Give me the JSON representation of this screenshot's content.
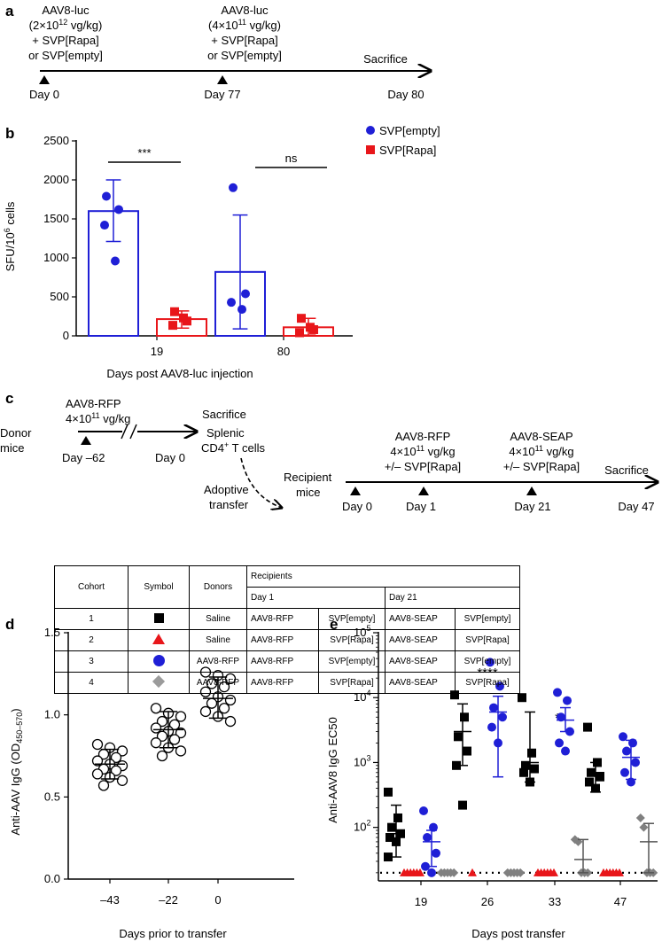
{
  "panel_a": {
    "label": "a",
    "events": [
      {
        "lines": [
          "AAV8-luc",
          "(2×10^12 vg/kg)",
          "+ SVP[Rapa]",
          "or SVP[empty]"
        ],
        "day": "Day 0"
      },
      {
        "lines": [
          "AAV8-luc",
          "(4×10^11 vg/kg)",
          "+ SVP[Rapa]",
          "or SVP[empty]"
        ],
        "day": "Day 77"
      }
    ],
    "end_label": "Sacrifice",
    "end_day": "Day 80"
  },
  "panel_b": {
    "label": "b",
    "chart_data": {
      "type": "bar",
      "categories": [
        "19",
        "80"
      ],
      "xlabel": "Days post AAV8-luc injection",
      "ylabel": "SFU/10^6 cells",
      "ylim": [
        0,
        2500
      ],
      "yticks": [
        0,
        500,
        1000,
        1500,
        2000,
        2500
      ],
      "legend": [
        "SVP[empty]",
        "SVP[Rapa]"
      ],
      "series": [
        {
          "name": "SVP[empty]",
          "color": "#1f1fd6",
          "marker": "circle",
          "means": [
            1600,
            820
          ],
          "sd_low": [
            1210,
            90
          ],
          "sd_high": [
            2000,
            1550
          ],
          "points": [
            [
              1790,
              1620,
              1420,
              960
            ],
            [
              1900,
              540,
              430,
              340
            ]
          ]
        },
        {
          "name": "SVP[Rapa]",
          "color": "#e8161a",
          "marker": "square",
          "means": [
            215,
            110
          ],
          "sd_low": [
            100,
            10
          ],
          "sd_high": [
            320,
            225
          ],
          "points": [
            [
              310,
              190,
              135,
              230
            ],
            [
              225,
              80,
              40,
              110
            ]
          ]
        }
      ],
      "significance": [
        "***",
        "ns"
      ]
    }
  },
  "panel_c": {
    "label": "c",
    "donor_label": [
      "Donor",
      "mice"
    ],
    "donor_inject": [
      "AAV8-RFP",
      "4×10^11 vg/kg"
    ],
    "donor_days": [
      "Day –62",
      "Day 0"
    ],
    "donor_end": "Sacrifice",
    "donor_cells": [
      "Splenic",
      "CD4+ T cells"
    ],
    "adoptive": [
      "Adoptive",
      "transfer"
    ],
    "recipient_label": [
      "Recipient",
      "mice"
    ],
    "recipient_events": [
      {
        "lines": [
          "AAV8-RFP",
          "4×10^11 vg/kg",
          "+/– SVP[Rapa]"
        ],
        "day": "Day 1"
      },
      {
        "lines": [
          "AAV8-SEAP",
          "4×10^11 vg/kg",
          "+/– SVP[Rapa]"
        ],
        "day": "Day 21"
      }
    ],
    "recipient_start": "Day 0",
    "recipient_end": "Sacrifice",
    "recipient_end_day": "Day 47",
    "table": {
      "headers": [
        "Cohort",
        "Symbol",
        "Donors",
        "Recipients",
        "Day 1",
        "Day 21"
      ],
      "rows": [
        {
          "cohort": "1",
          "symbol": "square",
          "donors": "Saline",
          "d1a": "AAV8-RFP",
          "d1b": "SVP[empty]",
          "d21a": "AAV8-SEAP",
          "d21b": "SVP[empty]"
        },
        {
          "cohort": "2",
          "symbol": "triangle",
          "donors": "Saline",
          "d1a": "AAV8-RFP",
          "d1b": "SVP[Rapa]",
          "d21a": "AAV8-SEAP",
          "d21b": "SVP[Rapa]"
        },
        {
          "cohort": "3",
          "symbol": "circle",
          "donors": "AAV8-RFP",
          "d1a": "AAV8-RFP",
          "d1b": "SVP[empty]",
          "d21a": "AAV8-SEAP",
          "d21b": "SVP[empty]"
        },
        {
          "cohort": "4",
          "symbol": "diamond",
          "donors": "AAV8-RFP",
          "d1a": "AAV8-RFP",
          "d1b": "SVP[Rapa]",
          "d21a": "AAV8-SEAP",
          "d21b": "SVP[Rapa]"
        }
      ]
    }
  },
  "panel_d": {
    "label": "d",
    "chart_data": {
      "type": "scatter",
      "categories": [
        "–43",
        "–22",
        "0"
      ],
      "xlabel": "Days prior to transfer",
      "ylabel": "Anti-AAV IgG (OD450–570)",
      "ylim": [
        0,
        1.5
      ],
      "yticks": [
        0.0,
        0.5,
        1.0,
        1.5
      ],
      "means": [
        0.7,
        0.91,
        1.1
      ],
      "sd_low": [
        0.61,
        0.8,
        0.98
      ],
      "sd_high": [
        0.79,
        1.02,
        1.23
      ],
      "points": [
        [
          0.82,
          0.8,
          0.78,
          0.76,
          0.74,
          0.72,
          0.7,
          0.69,
          0.67,
          0.66,
          0.64,
          0.62,
          0.6,
          0.57
        ],
        [
          1.04,
          1.01,
          0.99,
          0.96,
          0.94,
          0.92,
          0.9,
          0.89,
          0.87,
          0.85,
          0.83,
          0.8,
          0.78,
          0.75
        ],
        [
          1.26,
          1.24,
          1.22,
          1.19,
          1.17,
          1.14,
          1.11,
          1.09,
          1.07,
          1.04,
          1.02,
          0.99,
          0.96
        ]
      ]
    }
  },
  "panel_e": {
    "label": "e",
    "chart_data": {
      "type": "scatter",
      "yscale": "log",
      "categories": [
        "19",
        "26",
        "33",
        "47"
      ],
      "xlabel": "Days post transfer",
      "ylabel": "Anti-AAV8 IgG EC50",
      "ylim": [
        20,
        100000
      ],
      "yticks": [
        "10^2",
        "10^3",
        "10^4",
        "10^5"
      ],
      "detection_limit": 20,
      "significance": [
        "",
        "****",
        "*",
        ""
      ],
      "series": [
        {
          "name": "Cohort 1",
          "marker": "square",
          "color": "#000000",
          "values": [
            [
              350,
              140,
              100,
              80,
              70,
              60,
              35
            ],
            [
              11000,
              5000,
              2500,
              1500,
              900,
              220
            ],
            [
              10000,
              1400,
              900,
              800,
              700,
              500
            ],
            [
              3500,
              1000,
              700,
              600,
              500,
              400
            ]
          ],
          "means": [
            80,
            3000,
            1000,
            700
          ],
          "sd_low": [
            35,
            900,
            500,
            350
          ],
          "sd_high": [
            220,
            8000,
            6000,
            1000
          ]
        },
        {
          "name": "Cohort 2",
          "marker": "triangle",
          "color": "#e8161a",
          "values": [
            [
              20,
              20,
              20,
              20,
              20,
              20
            ],
            [
              20
            ],
            [
              20,
              20,
              20,
              20,
              20,
              20
            ],
            [
              20,
              20,
              20,
              20,
              20,
              20
            ]
          ],
          "means": [
            20,
            20,
            20,
            20
          ],
          "sd_low": [
            20,
            20,
            20,
            20
          ],
          "sd_high": [
            20,
            20,
            20,
            20
          ]
        },
        {
          "name": "Cohort 3",
          "marker": "circle",
          "color": "#1f1fd6",
          "values": [
            [
              180,
              100,
              70,
              40,
              25,
              20
            ],
            [
              35000,
              15000,
              7000,
              5000,
              3500,
              2000
            ],
            [
              12000,
              9000,
              5000,
              3000,
              2000,
              1500
            ],
            [
              2500,
              2000,
              1500,
              1000,
              700,
              500
            ]
          ],
          "means": [
            60,
            6000,
            4500,
            1200
          ],
          "sd_low": [
            25,
            600,
            3000,
            550
          ],
          "sd_high": [
            90,
            10500,
            7000,
            2200
          ]
        },
        {
          "name": "Cohort 4",
          "marker": "diamond",
          "color": "#808080",
          "values": [
            [
              20,
              20,
              20,
              20,
              20
            ],
            [
              20,
              20,
              20,
              20,
              20
            ],
            [
              65,
              60,
              20,
              20,
              20
            ],
            [
              140,
              100,
              20,
              20,
              20
            ]
          ],
          "means": [
            20,
            20,
            32,
            60
          ],
          "sd_low": [
            20,
            20,
            20,
            20
          ],
          "sd_high": [
            20,
            20,
            65,
            115
          ]
        }
      ]
    }
  }
}
